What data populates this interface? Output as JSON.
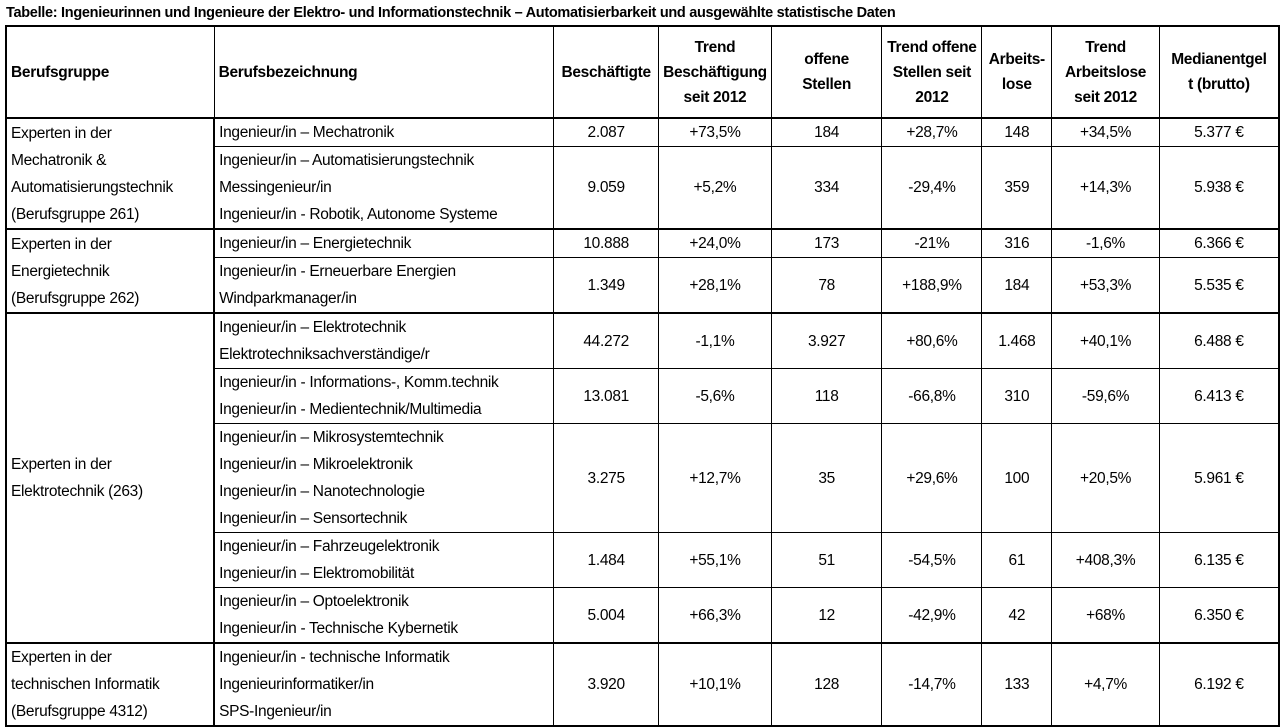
{
  "title": "Tabelle: Ingenieurinnen und Ingenieure der Elektro- und Informationstechnik – Automatisierbarkeit und ausgewählte statistische Daten",
  "headers": [
    [
      "Berufsgruppe"
    ],
    [
      "Berufsbezeichnung"
    ],
    [
      "Beschäftigte"
    ],
    [
      "Trend",
      "Beschäftigung",
      "seit 2012"
    ],
    [
      "offene",
      "Stellen"
    ],
    [
      "Trend offene",
      "Stellen seit",
      "2012"
    ],
    [
      "Arbeits-",
      "lose"
    ],
    [
      "Trend",
      "Arbeitslose",
      "seit 2012"
    ],
    [
      "Medianentgel",
      "t (brutto)"
    ]
  ],
  "groups": [
    {
      "name": [
        "Experten in der",
        "Mechatronik &",
        "Automatisierungstechnik",
        "(Berufsgruppe 261)"
      ],
      "rows": [
        {
          "titles": [
            "Ingenieur/in – Mechatronik"
          ],
          "values": [
            "2.087",
            "+73,5%",
            "184",
            "+28,7%",
            "148",
            "+34,5%",
            "5.377 €"
          ]
        },
        {
          "titles": [
            "Ingenieur/in – Automatisierungstechnik",
            "Messingenieur/in",
            "Ingenieur/in - Robotik, Autonome Systeme"
          ],
          "values": [
            "9.059",
            "+5,2%",
            "334",
            "-29,4%",
            "359",
            "+14,3%",
            "5.938 €"
          ]
        }
      ]
    },
    {
      "name": [
        "Experten in der",
        "Energietechnik",
        "(Berufsgruppe 262)"
      ],
      "rows": [
        {
          "titles": [
            "Ingenieur/in – Energietechnik"
          ],
          "values": [
            "10.888",
            "+24,0%",
            "173",
            "-21%",
            "316",
            "-1,6%",
            "6.366 €"
          ]
        },
        {
          "titles": [
            "Ingenieur/in - Erneuerbare Energien",
            "Windparkmanager/in"
          ],
          "values": [
            "1.349",
            "+28,1%",
            "78",
            "+188,9%",
            "184",
            "+53,3%",
            "5.535 €"
          ]
        }
      ]
    },
    {
      "name": [
        "Experten in der",
        "Elektrotechnik (263)"
      ],
      "rows": [
        {
          "titles": [
            "Ingenieur/in – Elektrotechnik",
            "Elektrotechniksachverständige/r"
          ],
          "values": [
            "44.272",
            "-1,1%",
            "3.927",
            "+80,6%",
            "1.468",
            "+40,1%",
            "6.488 €"
          ]
        },
        {
          "titles": [
            "Ingenieur/in - Informations-, Komm.technik",
            "Ingenieur/in - Medientechnik/Multimedia"
          ],
          "values": [
            "13.081",
            "-5,6%",
            "118",
            "-66,8%",
            "310",
            "-59,6%",
            "6.413 €"
          ]
        },
        {
          "titles": [
            "Ingenieur/in – Mikrosystemtechnik",
            "Ingenieur/in – Mikroelektronik",
            "Ingenieur/in – Nanotechnologie",
            "Ingenieur/in – Sensortechnik"
          ],
          "values": [
            "3.275",
            "+12,7%",
            "35",
            "+29,6%",
            "100",
            "+20,5%",
            "5.961 €"
          ]
        },
        {
          "titles": [
            "Ingenieur/in – Fahrzeugelektronik",
            "Ingenieur/in – Elektromobilität"
          ],
          "values": [
            "1.484",
            "+55,1%",
            "51",
            "-54,5%",
            "61",
            "+408,3%",
            "6.135 €"
          ]
        },
        {
          "titles": [
            "Ingenieur/in – Optoelektronik",
            "Ingenieur/in - Technische Kybernetik"
          ],
          "values": [
            "5.004",
            "+66,3%",
            "12",
            "-42,9%",
            "42",
            "+68%",
            "6.350 €"
          ]
        }
      ]
    },
    {
      "name": [
        "Experten in der",
        "technischen Informatik",
        "(Berufsgruppe 4312)"
      ],
      "rows": [
        {
          "titles": [
            "Ingenieur/in - technische Informatik",
            "Ingenieurinformatiker/in",
            "SPS-Ingenieur/in"
          ],
          "values": [
            "3.920",
            "+10,1%",
            "128",
            "-14,7%",
            "133",
            "+4,7%",
            "6.192 €"
          ]
        }
      ]
    }
  ]
}
